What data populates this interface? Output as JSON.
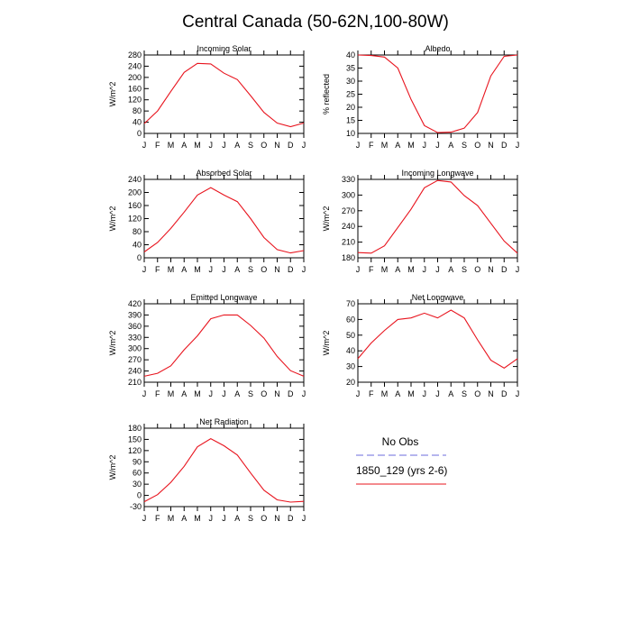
{
  "page_title": "Central Canada (50-62N,100-80W)",
  "months": [
    "J",
    "F",
    "M",
    "A",
    "M",
    "J",
    "J",
    "A",
    "S",
    "O",
    "N",
    "D",
    "J"
  ],
  "colors": {
    "model": "#e8141e",
    "obs": "#6b6bdc",
    "axis": "#000000"
  },
  "legend": {
    "obs_label": "No Obs",
    "model_label": "1850_129 (yrs 2-6)"
  },
  "chart_data": [
    {
      "type": "line",
      "title": "Incoming Solar",
      "ylabel": "W/m^2",
      "ylim": [
        0,
        280
      ],
      "yticks": [
        0,
        40,
        80,
        120,
        160,
        200,
        240,
        280
      ],
      "series": [
        {
          "name": "1850_129 (yrs 2-6)",
          "values": [
            35,
            80,
            150,
            218,
            250,
            248,
            215,
            192,
            135,
            75,
            37,
            24,
            37
          ]
        }
      ]
    },
    {
      "type": "line",
      "title": "Albedo",
      "ylabel": "% reflected",
      "ylim": [
        10,
        40
      ],
      "yticks": [
        10,
        15,
        20,
        25,
        30,
        35,
        40
      ],
      "series": [
        {
          "name": "1850_129 (yrs 2-6)",
          "values": [
            40,
            39.8,
            39.2,
            35,
            23,
            13,
            10.3,
            10.5,
            12,
            18,
            32,
            39.5,
            40
          ]
        }
      ]
    },
    {
      "type": "line",
      "title": "Absorbed Solar",
      "ylabel": "W/m^2",
      "ylim": [
        0,
        240
      ],
      "yticks": [
        0,
        40,
        80,
        120,
        160,
        200,
        240
      ],
      "series": [
        {
          "name": "1850_129 (yrs 2-6)",
          "values": [
            18,
            47,
            90,
            140,
            192,
            215,
            192,
            172,
            120,
            62,
            25,
            15,
            22
          ]
        }
      ]
    },
    {
      "type": "line",
      "title": "Incoming Longwave",
      "ylabel": "W/m^2",
      "ylim": [
        180,
        330
      ],
      "yticks": [
        180,
        210,
        240,
        270,
        300,
        330
      ],
      "series": [
        {
          "name": "1850_129 (yrs 2-6)",
          "values": [
            190,
            189,
            203,
            238,
            273,
            314,
            328,
            325,
            299,
            280,
            246,
            212,
            189
          ]
        }
      ]
    },
    {
      "type": "line",
      "title": "Emitted Longwave",
      "ylabel": "W/m^2",
      "ylim": [
        210,
        420
      ],
      "yticks": [
        210,
        240,
        270,
        300,
        330,
        360,
        390,
        420
      ],
      "series": [
        {
          "name": "1850_129 (yrs 2-6)",
          "values": [
            226,
            234,
            254,
            297,
            334,
            380,
            390,
            390,
            362,
            328,
            279,
            241,
            226
          ]
        }
      ]
    },
    {
      "type": "line",
      "title": "Net Longwave",
      "ylabel": "W/m^2",
      "ylim": [
        20,
        70
      ],
      "yticks": [
        20,
        30,
        40,
        50,
        60,
        70
      ],
      "series": [
        {
          "name": "1850_129 (yrs 2-6)",
          "values": [
            35,
            45,
            53,
            60,
            61,
            64,
            61,
            66,
            61,
            47,
            34,
            29,
            35
          ]
        }
      ]
    },
    {
      "type": "line",
      "title": "Net Radiation",
      "ylabel": "W/m^2",
      "ylim": [
        -30,
        180
      ],
      "yticks": [
        -30,
        0,
        30,
        60,
        90,
        120,
        150,
        180
      ],
      "series": [
        {
          "name": "1850_129 (yrs 2-6)",
          "values": [
            -17,
            2,
            35,
            78,
            130,
            152,
            133,
            108,
            60,
            14,
            -12,
            -18,
            -16
          ]
        }
      ]
    }
  ]
}
